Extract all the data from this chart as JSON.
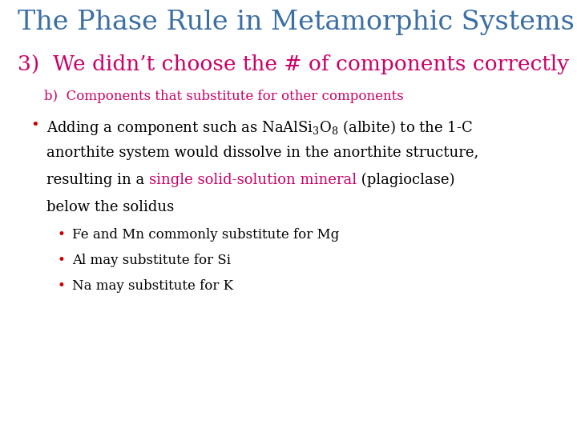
{
  "title": "The Phase Rule in Metamorphic Systems",
  "title_color": "#3A6EA5",
  "subtitle": "3)  We didn’t choose the # of components correctly",
  "subtitle_color": "#CC0066",
  "subheading": "b)  Components that substitute for other components",
  "subheading_color": "#CC0066",
  "background_color": "#FFFFFF",
  "bullet_color": "#CC0000",
  "body_color": "#000000",
  "highlight_color": "#CC0066",
  "line1a": "Adding a component such as NaAlSi",
  "line1_sub1": "3",
  "line1b": "O",
  "line1_sub2": "8",
  "line1c": " (albite) to the 1-C",
  "line2": "anorthite system would dissolve in the anorthite structure,",
  "line3_pre": "resulting in a ",
  "line3_highlight": "single solid-solution mineral",
  "line3_post": " (plagioclase)",
  "line4": "below the solidus",
  "sub_bullets": [
    "Fe and Mn commonly substitute for Mg",
    "Al may substitute for Si",
    "Na may substitute for K"
  ],
  "title_fontsize": 24,
  "subtitle_fontsize": 19,
  "subheading_fontsize": 12,
  "body_fontsize": 13,
  "sub_fontsize": 12
}
